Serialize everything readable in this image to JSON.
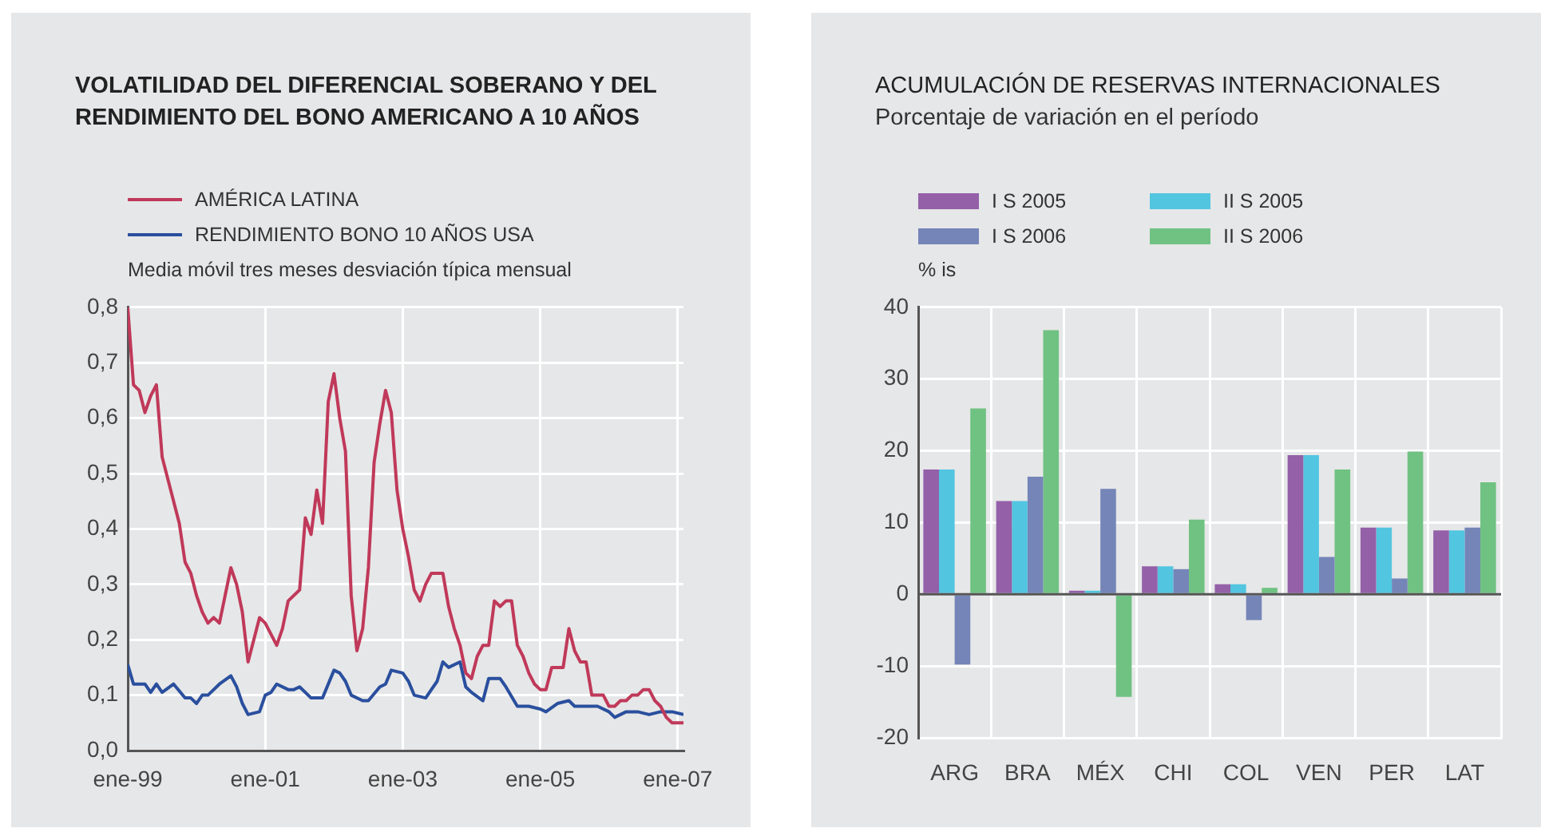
{
  "chart_data": [
    {
      "type": "line",
      "title": "VOLATILIDAD DEL DIFERENCIAL SOBERANO Y DEL RENDIMIENTO DEL BONO AMERICANO A 10 AÑOS",
      "ylabel": "Media móvil tres meses desviación típica mensual",
      "legend": "top",
      "grid": true,
      "marker": "none",
      "line_style": "solid",
      "xlim": [
        "1999-01",
        "2007-02"
      ],
      "xticks": [
        {
          "value": "1999-01",
          "label": "ene-99"
        },
        {
          "value": "2001-01",
          "label": "ene-01"
        },
        {
          "value": "2003-01",
          "label": "ene-03"
        },
        {
          "value": "2005-01",
          "label": "ene-05"
        },
        {
          "value": "2007-01",
          "label": "ene-07"
        }
      ],
      "ylim": [
        0,
        0.8
      ],
      "yticks": [
        {
          "value": 0,
          "label": "0,0"
        },
        {
          "value": 0.1,
          "label": "0,1"
        },
        {
          "value": 0.2,
          "label": "0,2"
        },
        {
          "value": 0.3,
          "label": "0,3"
        },
        {
          "value": 0.4,
          "label": "0,4"
        },
        {
          "value": 0.5,
          "label": "0,5"
        },
        {
          "value": 0.6,
          "label": "0,6"
        },
        {
          "value": 0.7,
          "label": "0,7"
        },
        {
          "value": 0.8,
          "label": "0,8"
        }
      ],
      "series": [
        {
          "name": "AMÉRICA LATINA",
          "color": "#c0395a",
          "x": [
            "1999-01",
            "1999-02",
            "1999-03",
            "1999-04",
            "1999-05",
            "1999-06",
            "1999-07",
            "1999-08",
            "1999-09",
            "1999-10",
            "1999-11",
            "1999-12",
            "2000-01",
            "2000-02",
            "2000-03",
            "2000-04",
            "2000-05",
            "2000-06",
            "2000-07",
            "2000-08",
            "2000-09",
            "2000-10",
            "2000-11",
            "2000-12",
            "2001-01",
            "2001-03",
            "2001-04",
            "2001-05",
            "2001-07",
            "2001-08",
            "2001-09",
            "2001-10",
            "2001-11",
            "2001-12",
            "2002-01",
            "2002-02",
            "2002-03",
            "2002-04",
            "2002-05",
            "2002-06",
            "2002-07",
            "2002-08",
            "2002-09",
            "2002-10",
            "2002-11",
            "2002-12",
            "2003-01",
            "2003-02",
            "2003-03",
            "2003-04",
            "2003-05",
            "2003-06",
            "2003-08",
            "2003-09",
            "2003-10",
            "2003-11",
            "2003-12",
            "2004-01",
            "2004-02",
            "2004-03",
            "2004-04",
            "2004-05",
            "2004-06",
            "2004-07",
            "2004-08",
            "2004-09",
            "2004-10",
            "2004-11",
            "2004-12",
            "2005-01",
            "2005-02",
            "2005-03",
            "2005-04",
            "2005-05",
            "2005-06",
            "2005-07",
            "2005-08",
            "2005-09",
            "2005-10",
            "2005-11",
            "2005-12",
            "2006-01",
            "2006-02",
            "2006-03",
            "2006-04",
            "2006-05",
            "2006-06",
            "2006-07",
            "2006-08",
            "2006-09",
            "2006-10",
            "2006-11",
            "2006-12",
            "2007-01",
            "2007-02"
          ],
          "values": [
            0.8,
            0.66,
            0.65,
            0.61,
            0.64,
            0.66,
            0.53,
            0.49,
            0.45,
            0.41,
            0.34,
            0.32,
            0.28,
            0.25,
            0.23,
            0.24,
            0.23,
            0.28,
            0.33,
            0.3,
            0.25,
            0.16,
            0.2,
            0.24,
            0.23,
            0.19,
            0.22,
            0.27,
            0.29,
            0.42,
            0.39,
            0.47,
            0.41,
            0.63,
            0.68,
            0.6,
            0.54,
            0.28,
            0.18,
            0.22,
            0.33,
            0.52,
            0.59,
            0.65,
            0.61,
            0.47,
            0.4,
            0.35,
            0.29,
            0.27,
            0.3,
            0.32,
            0.32,
            0.26,
            0.22,
            0.19,
            0.14,
            0.13,
            0.17,
            0.19,
            0.19,
            0.27,
            0.26,
            0.27,
            0.27,
            0.19,
            0.17,
            0.14,
            0.12,
            0.11,
            0.11,
            0.15,
            0.15,
            0.15,
            0.22,
            0.18,
            0.16,
            0.16,
            0.1,
            0.1,
            0.1,
            0.08,
            0.08,
            0.09,
            0.09,
            0.1,
            0.1,
            0.11,
            0.11,
            0.09,
            0.08,
            0.06,
            0.05,
            0.05,
            0.05
          ]
        },
        {
          "name": "RENDIMIENTO BONO 10 AÑOS USA",
          "color": "#2a4f9e",
          "x": [
            "1999-01",
            "1999-02",
            "1999-04",
            "1999-05",
            "1999-06",
            "1999-07",
            "1999-09",
            "1999-11",
            "1999-12",
            "2000-01",
            "2000-02",
            "2000-03",
            "2000-05",
            "2000-07",
            "2000-08",
            "2000-09",
            "2000-10",
            "2000-12",
            "2001-01",
            "2001-02",
            "2001-03",
            "2001-05",
            "2001-06",
            "2001-07",
            "2001-09",
            "2001-11",
            "2002-01",
            "2002-02",
            "2002-03",
            "2002-04",
            "2002-06",
            "2002-07",
            "2002-09",
            "2002-10",
            "2002-11",
            "2003-01",
            "2003-02",
            "2003-03",
            "2003-05",
            "2003-06",
            "2003-07",
            "2003-08",
            "2003-09",
            "2003-11",
            "2003-12",
            "2004-01",
            "2004-03",
            "2004-04",
            "2004-06",
            "2004-07",
            "2004-09",
            "2004-11",
            "2005-01",
            "2005-02",
            "2005-04",
            "2005-06",
            "2005-07",
            "2005-08",
            "2005-11",
            "2006-01",
            "2006-02",
            "2006-04",
            "2006-06",
            "2006-08",
            "2006-10",
            "2006-12",
            "2007-02"
          ],
          "values": [
            0.155,
            0.12,
            0.12,
            0.105,
            0.12,
            0.105,
            0.12,
            0.095,
            0.095,
            0.085,
            0.1,
            0.1,
            0.12,
            0.135,
            0.115,
            0.085,
            0.065,
            0.07,
            0.1,
            0.105,
            0.12,
            0.11,
            0.11,
            0.115,
            0.095,
            0.095,
            0.145,
            0.14,
            0.125,
            0.1,
            0.09,
            0.09,
            0.115,
            0.12,
            0.145,
            0.14,
            0.125,
            0.1,
            0.095,
            0.11,
            0.125,
            0.16,
            0.15,
            0.16,
            0.115,
            0.105,
            0.09,
            0.13,
            0.13,
            0.115,
            0.08,
            0.08,
            0.075,
            0.07,
            0.085,
            0.09,
            0.08,
            0.08,
            0.08,
            0.07,
            0.06,
            0.07,
            0.07,
            0.065,
            0.07,
            0.07,
            0.065
          ]
        }
      ]
    },
    {
      "type": "bar",
      "title": "ACUMULACIÓN DE RESERVAS INTERNACIONALES",
      "subtitle": "Porcentaje de variación en el período",
      "ylabel": "% is",
      "legend": "top",
      "grid": true,
      "categories": [
        "ARG",
        "BRA",
        "MÉX",
        "CHI",
        "COL",
        "VEN",
        "PER",
        "LAT"
      ],
      "ylim": [
        -20,
        40
      ],
      "yticks": [
        -20,
        -10,
        0,
        10,
        20,
        30,
        40
      ],
      "ref_lines": [
        {
          "axis": "y",
          "value": 0,
          "color": "#555555"
        }
      ],
      "series": [
        {
          "name": "I S 2005",
          "color": "#9460a8",
          "values": [
            17.4,
            13.0,
            0.5,
            3.9,
            1.4,
            19.4,
            9.3,
            8.9
          ]
        },
        {
          "name": "II S 2005",
          "color": "#52c5e0",
          "values": [
            17.4,
            13.0,
            0.5,
            3.9,
            1.4,
            19.4,
            9.3,
            8.9
          ]
        },
        {
          "name": "I S 2006",
          "color": "#7585b8",
          "values": [
            -9.8,
            16.4,
            14.7,
            3.5,
            -3.6,
            5.2,
            2.2,
            9.3
          ]
        },
        {
          "name": "II S 2006",
          "color": "#70c282",
          "values": [
            25.9,
            36.8,
            -14.3,
            10.4,
            0.9,
            17.4,
            19.9,
            15.6
          ]
        }
      ]
    }
  ]
}
